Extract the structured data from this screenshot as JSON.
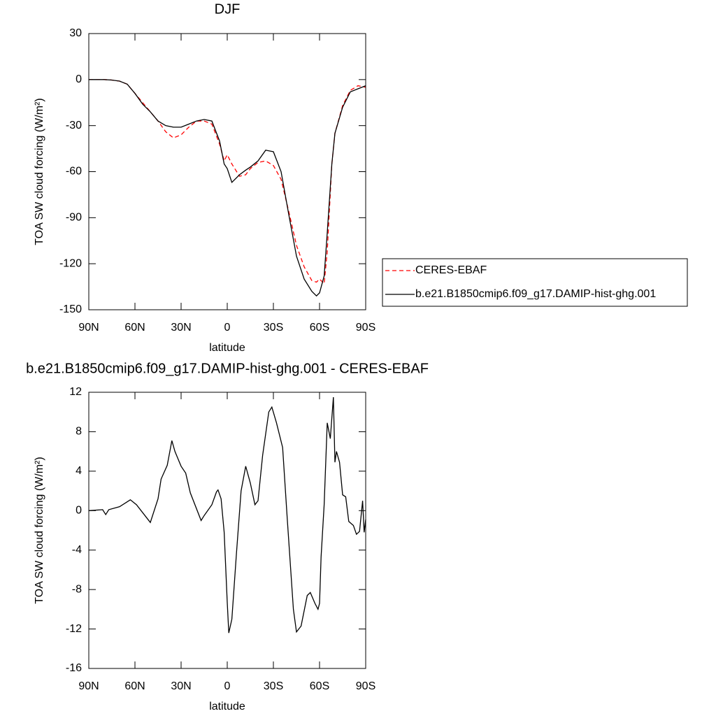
{
  "chart_data": [
    {
      "type": "line",
      "title": "DJF",
      "x_label": "latitude",
      "y_label": "TOA SW cloud forcing (W/m²)",
      "xlim": [
        90,
        -90
      ],
      "xticks": [
        {
          "value": 90,
          "label": "90N"
        },
        {
          "value": 60,
          "label": "60N"
        },
        {
          "value": 30,
          "label": "30N"
        },
        0,
        {
          "value": -30,
          "label": "30S"
        },
        {
          "value": -60,
          "label": "60S"
        },
        {
          "value": -90,
          "label": "90S"
        }
      ],
      "ylim": [
        -150,
        30
      ],
      "yticks": [
        30,
        0,
        -30,
        -60,
        -90,
        -120,
        -150
      ],
      "legend": "right",
      "x": [
        90,
        85,
        80,
        75,
        70,
        65,
        60,
        55,
        50,
        45,
        40,
        35,
        30,
        25,
        20,
        15,
        10,
        5,
        2,
        0,
        -3,
        -8,
        -12,
        -15,
        -20,
        -25,
        -30,
        -35,
        -40,
        -45,
        -50,
        -55,
        -58,
        -60,
        -63,
        -65,
        -68,
        -70,
        -75,
        -80,
        -85,
        -90
      ],
      "series": [
        {
          "name": "CERES-EBAF",
          "color": "#ff0000",
          "line_style": "dashed",
          "values": [
            0,
            0,
            0,
            -0.3,
            -1,
            -3,
            -9,
            -15,
            -21,
            -27,
            -34,
            -38,
            -36,
            -31,
            -27,
            -27,
            -29,
            -42,
            -53,
            -49,
            -55,
            -63,
            -62,
            -58,
            -54,
            -53,
            -56,
            -65,
            -86,
            -108,
            -122,
            -131,
            -132,
            -130,
            -133,
            -112,
            -55,
            -35,
            -17,
            -7,
            -4,
            -5
          ]
        },
        {
          "name": "b.e21.B1850cmip6.f09_g17.DAMIP-hist-ghg.001",
          "color": "#000000",
          "line_style": "solid",
          "values": [
            0,
            0,
            0,
            -0.3,
            -1,
            -3,
            -9,
            -16,
            -21,
            -27,
            -30,
            -31,
            -31,
            -29,
            -27,
            -26,
            -27,
            -40,
            -55,
            -58,
            -67,
            -62,
            -59,
            -57,
            -53,
            -46,
            -47,
            -60,
            -88,
            -115,
            -130,
            -138,
            -141,
            -139,
            -128,
            -100,
            -55,
            -35,
            -18,
            -8,
            -6,
            -4
          ]
        }
      ]
    },
    {
      "type": "line",
      "title": "b.e21.B1850cmip6.f09_g17.DAMIP-hist-ghg.001 - CERES-EBAF",
      "x_label": "latitude",
      "y_label": "TOA SW cloud forcing (W/m²)",
      "xlim": [
        90,
        -90
      ],
      "xticks": [
        {
          "value": 90,
          "label": "90N"
        },
        {
          "value": 60,
          "label": "60N"
        },
        {
          "value": 30,
          "label": "30N"
        },
        0,
        {
          "value": -30,
          "label": "30S"
        },
        {
          "value": -60,
          "label": "60S"
        },
        {
          "value": -90,
          "label": "90S"
        }
      ],
      "ylim": [
        -16,
        12
      ],
      "yticks": [
        12,
        8,
        4,
        0,
        -4,
        -8,
        -12,
        -16
      ],
      "x": [
        90,
        81,
        79,
        77,
        70,
        63,
        59,
        50,
        45,
        43,
        39,
        36,
        34,
        30,
        27,
        24,
        17,
        15,
        10,
        7,
        6,
        4,
        2,
        0,
        -1,
        -3,
        -6,
        -9,
        -12,
        -15,
        -18,
        -20,
        -23,
        -27,
        -29,
        -32,
        -36,
        -39,
        -43,
        -45,
        -48,
        -52,
        -54,
        -57,
        -59,
        -60,
        -61,
        -63,
        -65,
        -67,
        -69,
        -70,
        -71,
        -73,
        -75,
        -77,
        -79,
        -82,
        -84,
        -86,
        -88,
        -89,
        -90
      ],
      "series": [
        {
          "color": "#000000",
          "line_style": "solid",
          "values": [
            0,
            0.1,
            -0.4,
            0.1,
            0.4,
            1.1,
            0.6,
            -1.2,
            1.2,
            3.2,
            4.6,
            7.1,
            6,
            4.5,
            3.8,
            1.8,
            -1,
            -0.5,
            0.6,
            1.9,
            2.1,
            1.2,
            -2.2,
            -9.3,
            -12.4,
            -11,
            -4.3,
            2,
            4.5,
            2.8,
            0.6,
            1,
            5.6,
            10,
            10.5,
            8.9,
            6.4,
            -0.8,
            -10,
            -12.3,
            -11.7,
            -8.6,
            -8.3,
            -9.4,
            -10,
            -9.4,
            -4.7,
            0.6,
            8.9,
            7.3,
            11.5,
            4.9,
            6,
            4.9,
            1.6,
            1.4,
            -1.1,
            -1.5,
            -2.4,
            -2.1,
            1,
            -2.2,
            -0.9
          ]
        }
      ]
    }
  ]
}
